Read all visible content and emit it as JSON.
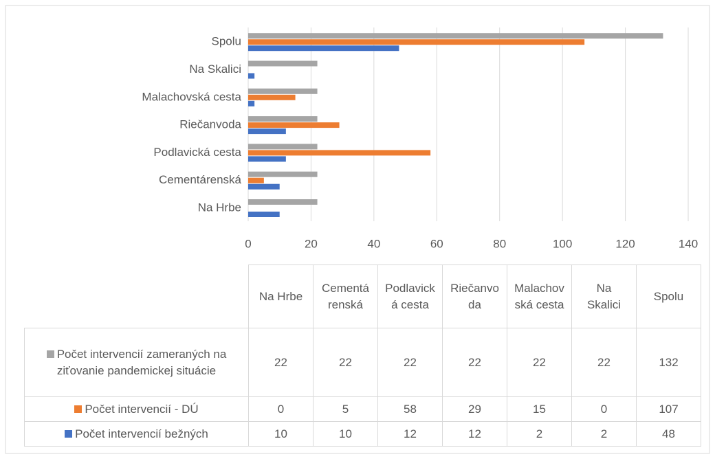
{
  "chart_data": {
    "type": "bar",
    "orientation": "horizontal",
    "categories": [
      "Na Hrbe",
      "Cementárenská",
      "Podlavická cesta",
      "Riečanvoda",
      "Malachovská cesta",
      "Na Skalici",
      "Spolu"
    ],
    "series": [
      {
        "name": "Počet intervencií zameraných na ziťovanie pandemickej situácie",
        "color": "#a5a5a5",
        "values": [
          22,
          22,
          22,
          22,
          22,
          22,
          132
        ]
      },
      {
        "name": "Počet intervencií - DÚ",
        "color": "#ed7d31",
        "values": [
          0,
          5,
          58,
          29,
          15,
          0,
          107
        ]
      },
      {
        "name": "Počet intervencií bežných",
        "color": "#4472c4",
        "values": [
          10,
          10,
          12,
          12,
          2,
          2,
          48
        ]
      }
    ],
    "xlim": [
      0,
      140
    ],
    "xticks": [
      0,
      20,
      40,
      60,
      80,
      100,
      120,
      140
    ],
    "grid": true,
    "data_table": true
  }
}
